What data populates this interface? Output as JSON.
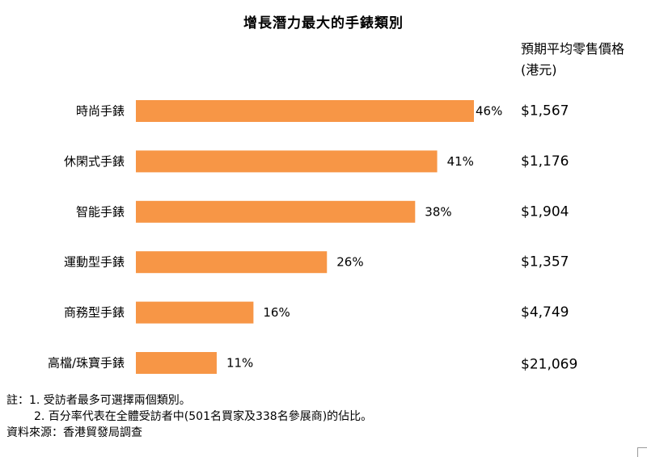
{
  "chart_data": {
    "type": "bar",
    "orientation": "horizontal",
    "title": "增長潛力最大的手錶類別",
    "categories": [
      "時尚手錶",
      "休閑式手錶",
      "智能手錶",
      "運動型手錶",
      "商務型手錶",
      "高檔/珠寶手錶"
    ],
    "values": [
      46,
      41,
      38,
      26,
      16,
      11
    ],
    "value_labels": [
      "46%",
      "41%",
      "38%",
      "26%",
      "16%",
      "11%"
    ],
    "value_unit": "%",
    "xlim": [
      0,
      46
    ],
    "grid": false,
    "legend": "none",
    "bar_color": "#f79646",
    "price_header": "預期平均零售價格(港元)",
    "prices": [
      "$1,567",
      "$1,176",
      "$1,904",
      "$1,357",
      "$4,749",
      "$21,069"
    ]
  },
  "notes": {
    "line1": "註：1. 受訪者最多可選擇兩個類別。",
    "line2": "2. 百分率代表在全體受訪者中(501名買家及338名參展商)的佔比。",
    "source": "資料來源：香港貿發局調查"
  }
}
